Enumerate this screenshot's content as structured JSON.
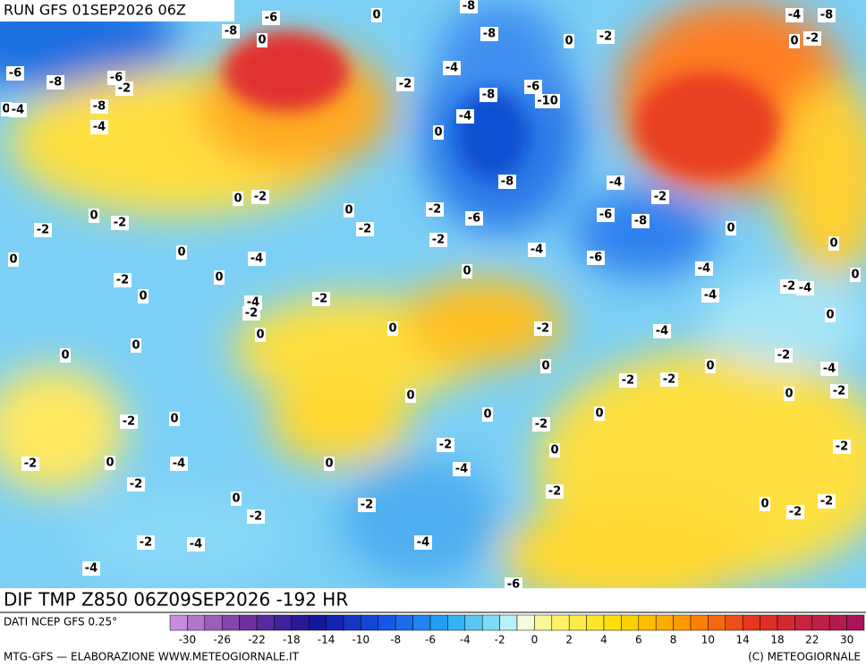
{
  "header": {
    "run": "RUN GFS 01SEP2026 06Z"
  },
  "map_labels": [
    -6,
    -8,
    0,
    0,
    -8,
    -8,
    -4,
    -2,
    -6,
    -10,
    -8,
    -4,
    0,
    0,
    -2,
    -4,
    -8,
    0,
    -2,
    -6,
    -8,
    -6,
    -2,
    0,
    -4,
    -8,
    -4,
    0,
    -2,
    0,
    -2,
    -2,
    0,
    -2,
    -2,
    -8,
    -6,
    -4,
    -2,
    -6,
    -8,
    0,
    0,
    0,
    0,
    -4,
    -2,
    0,
    -4,
    -6,
    -4,
    0,
    -2,
    0,
    0,
    -4,
    -2,
    -2,
    -4,
    -2,
    -4,
    0,
    0,
    0,
    -2,
    -4,
    0,
    0,
    -2,
    -4,
    0,
    0,
    -2,
    -2,
    0,
    -2,
    0,
    0,
    -2,
    0,
    0,
    -2,
    -2,
    0,
    -2,
    -2,
    0,
    -4,
    0,
    -4,
    -2,
    -2,
    0,
    -2,
    0,
    -2,
    -2,
    -2,
    -2,
    -4,
    -4,
    -4,
    -6
  ],
  "footer": {
    "title": "DIF TMP Z850 06Z09SEP2026 -192 HR",
    "source": "DATI NCEP GFS 0.25°",
    "credits": "MTG-GFS — ELABORAZIONE WWW.METEOGIORNALE.IT",
    "copyright": "(C) METEOGIORNALE"
  },
  "scale": {
    "labels": [
      -30,
      -26,
      -22,
      -18,
      -14,
      -10,
      -8,
      -6,
      -4,
      -2,
      0,
      2,
      4,
      6,
      8,
      10,
      14,
      18,
      22,
      30
    ]
  }
}
